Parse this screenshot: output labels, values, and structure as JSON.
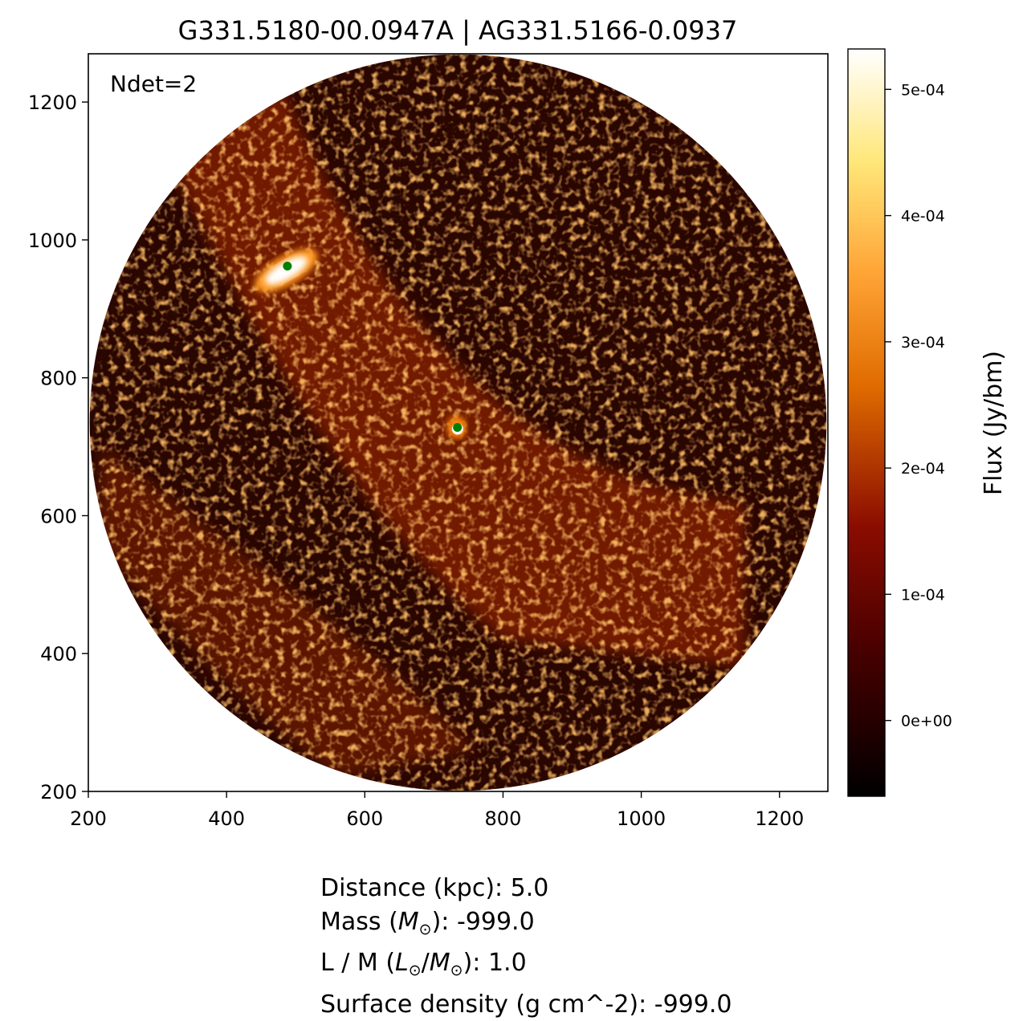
{
  "chart_data": {
    "type": "heatmap",
    "title": "G331.5180-00.0947A | AG331.5166-0.0937",
    "annotation": "Ndet=2",
    "xlim": [
      200,
      1270
    ],
    "ylim": [
      200,
      1270
    ],
    "x_ticks": [
      200,
      400,
      600,
      800,
      1000,
      1200
    ],
    "x_tick_labels": [
      "200",
      "400",
      "600",
      "800",
      "1000",
      "1200"
    ],
    "y_ticks": [
      200,
      400,
      600,
      800,
      1000,
      1200
    ],
    "y_tick_labels": [
      "200",
      "400",
      "600",
      "800",
      "1000",
      "1200"
    ],
    "field_of_view": {
      "shape": "circle",
      "center": [
        735,
        735
      ],
      "radius": 533
    },
    "colormap": "afmhot",
    "colorbar": {
      "label": "Flux (Jy/bm)",
      "range": [
        -6e-05,
        0.000532
      ],
      "ticks": [
        0.0,
        0.0001,
        0.0002,
        0.0003,
        0.0004,
        0.0005
      ],
      "tick_labels": [
        "0e+00",
        "1e-04",
        "2e-04",
        "3e-04",
        "4e-04",
        "5e-04"
      ]
    },
    "emission": {
      "filament_direction": "upper-left to lower-right",
      "bright_sources": [
        {
          "x": 488,
          "y": 962,
          "note": "brightest compact source"
        },
        {
          "x": 733,
          "y": 728,
          "note": "central compact source"
        }
      ]
    },
    "detections": [
      {
        "x": 488,
        "y": 962,
        "color": "#008000"
      },
      {
        "x": 734,
        "y": 728,
        "color": "#008000"
      }
    ]
  },
  "info": {
    "distance_label": "Distance (kpc): 5.0",
    "mass_pre": "Mass (",
    "mass_sym": "M",
    "mass_post": "): -999.0",
    "lm_pre": "L / M (",
    "lm_sym_l": "L",
    "lm_sym_m": "M",
    "lm_post": "): 1.0",
    "surface_density_label": "Surface density (g cm^-2): -999.0"
  }
}
